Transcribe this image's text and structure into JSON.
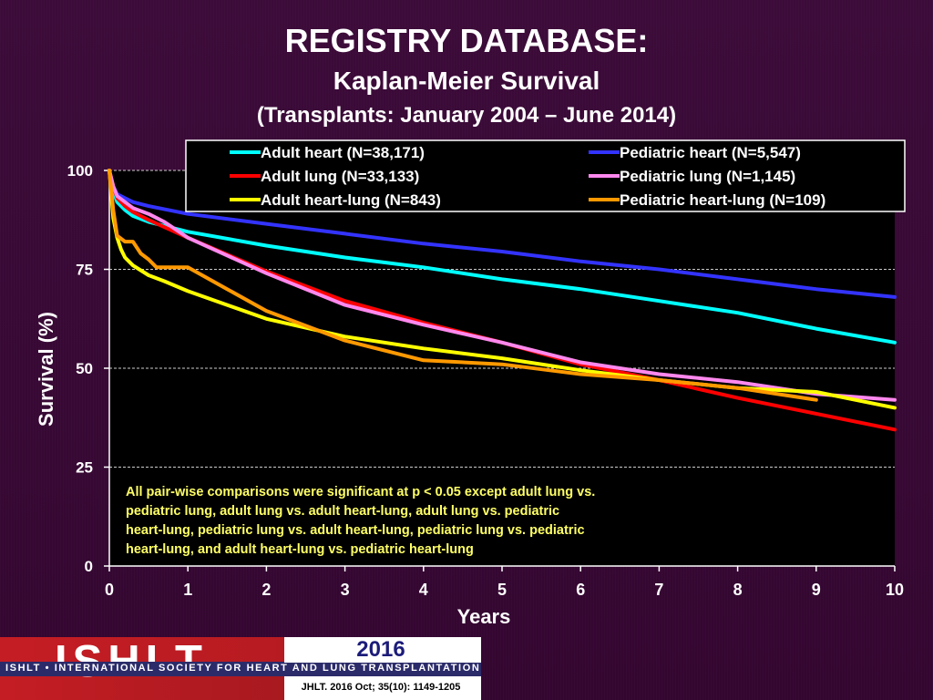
{
  "header": {
    "title": "REGISTRY DATABASE:",
    "subtitle": "Kaplan-Meier Survival",
    "subtitle2": "(Transplants: January 2004 – June 2014)"
  },
  "chart_data": {
    "type": "line",
    "xlabel": "Years",
    "ylabel": "Survival (%)",
    "xlim": [
      0,
      10
    ],
    "ylim": [
      0,
      100
    ],
    "xticks": [
      0,
      1,
      2,
      3,
      4,
      5,
      6,
      7,
      8,
      9,
      10
    ],
    "yticks": [
      0,
      25,
      50,
      75,
      100
    ],
    "grid": "horizontal dashed",
    "legend": "top, two columns",
    "annotation": "All pair-wise comparisons were significant at p < 0.05 except adult lung vs. pediatric lung, adult lung vs. adult heart-lung, adult lung vs. pediatric heart-lung, pediatric lung vs. adult heart-lung, pediatric lung vs. pediatric heart-lung,  and adult heart-lung vs. pediatric heart-lung",
    "series": [
      {
        "name": "Adult heart (N=38,171)",
        "color": "#00ffff",
        "x": [
          0,
          0.05,
          0.1,
          0.2,
          0.3,
          0.5,
          1,
          2,
          3,
          4,
          5,
          6,
          7,
          8,
          9,
          10
        ],
        "y": [
          100,
          95,
          92,
          90,
          88.5,
          87,
          84.5,
          81,
          78,
          75.5,
          72.5,
          70,
          67,
          64,
          60,
          56.5
        ]
      },
      {
        "name": "Pediatric heart (N=5,547)",
        "color": "#3333ff",
        "x": [
          0,
          0.05,
          0.1,
          0.2,
          0.3,
          0.5,
          1,
          2,
          3,
          4,
          5,
          6,
          7,
          8,
          9,
          10
        ],
        "y": [
          100,
          96,
          94,
          93,
          92,
          91,
          89,
          86.5,
          84,
          81.5,
          79.5,
          77,
          75,
          72.5,
          70,
          68
        ]
      },
      {
        "name": "Adult lung (N=33,133)",
        "color": "#ff0000",
        "x": [
          0,
          0.05,
          0.1,
          0.2,
          0.3,
          0.5,
          1,
          2,
          3,
          4,
          5,
          6,
          7,
          8,
          9,
          10
        ],
        "y": [
          100,
          96,
          93,
          91,
          89.5,
          87.5,
          83,
          74.5,
          67,
          61.5,
          56.5,
          51,
          47,
          42.5,
          38.5,
          34.5
        ]
      },
      {
        "name": "Pediatric lung (N=1,145)",
        "color": "#ff88ee",
        "x": [
          0,
          0.05,
          0.1,
          0.2,
          0.3,
          0.5,
          0.7,
          1,
          2,
          3,
          4,
          5,
          6,
          7,
          8,
          9,
          10
        ],
        "y": [
          100,
          96,
          93.5,
          92,
          90.5,
          89,
          87,
          83,
          74,
          66,
          61,
          56.5,
          51.5,
          48.5,
          46.5,
          43.5,
          42
        ]
      },
      {
        "name": "Adult heart-lung (N=843)",
        "color": "#ffff00",
        "x": [
          0,
          0.05,
          0.1,
          0.15,
          0.2,
          0.3,
          0.5,
          0.7,
          1,
          2,
          3,
          4,
          5,
          6,
          7,
          8,
          9,
          10
        ],
        "y": [
          100,
          88,
          83,
          80,
          78,
          76,
          73.5,
          72,
          69.5,
          62.5,
          58,
          55,
          52.5,
          49.5,
          47,
          45,
          44,
          40
        ]
      },
      {
        "name": "Pediatric heart-lung (N=109)",
        "color": "#ff9900",
        "x": [
          0,
          0.05,
          0.1,
          0.2,
          0.3,
          0.4,
          0.5,
          0.6,
          0.8,
          1,
          1.5,
          2,
          3,
          4,
          5,
          6,
          7,
          8,
          9
        ],
        "y": [
          100,
          90,
          83.5,
          82,
          82,
          79,
          77.5,
          75.5,
          75.5,
          75.5,
          70,
          64.5,
          57,
          52,
          51,
          48.5,
          47,
          45,
          42
        ]
      }
    ]
  },
  "footer": {
    "logo": "ISHLT",
    "org_name": "ISHLT • INTERNATIONAL SOCIETY FOR HEART AND LUNG TRANSPLANTATION",
    "year": "2016",
    "citation": "JHLT. 2016 Oct; 35(10): 1149-1205"
  }
}
